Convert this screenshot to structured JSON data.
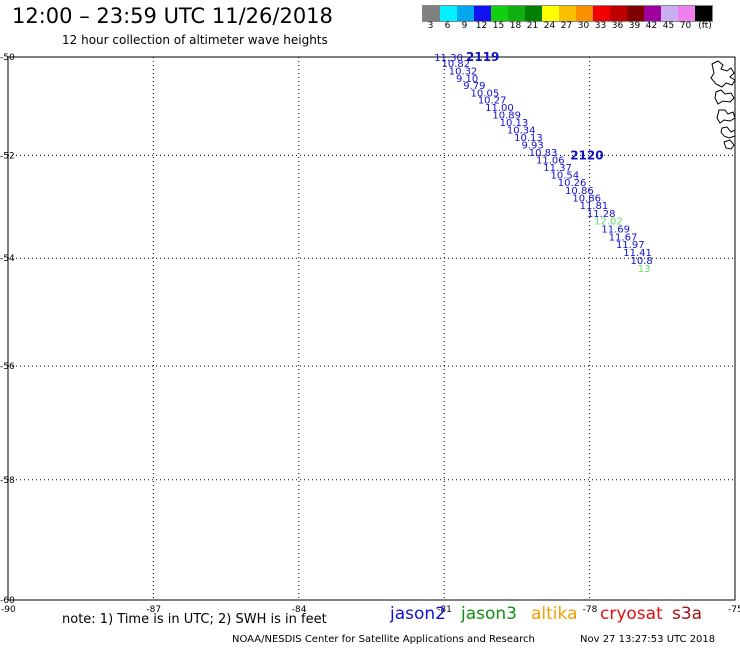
{
  "header": {
    "title": "12:00 – 23:59 UTC 11/26/2018",
    "subtitle": "12 hour collection of altimeter wave heights"
  },
  "scale": {
    "unit": "(ft)",
    "items": [
      {
        "label": "3",
        "color": "#808080"
      },
      {
        "label": "6",
        "color": "#00f0ff"
      },
      {
        "label": "9",
        "color": "#00a8f0"
      },
      {
        "label": "12",
        "color": "#1010f0"
      },
      {
        "label": "15",
        "color": "#10d010"
      },
      {
        "label": "18",
        "color": "#10b010"
      },
      {
        "label": "21",
        "color": "#008000"
      },
      {
        "label": "24",
        "color": "#ffff00"
      },
      {
        "label": "27",
        "color": "#f8c000"
      },
      {
        "label": "30",
        "color": "#f89000"
      },
      {
        "label": "33",
        "color": "#f00000"
      },
      {
        "label": "36",
        "color": "#c00000"
      },
      {
        "label": "39",
        "color": "#800000"
      },
      {
        "label": "42",
        "color": "#a000a0"
      },
      {
        "label": "45",
        "color": "#c8b0f0"
      },
      {
        "label": "70",
        "color": "#f080f0"
      },
      {
        "label": "(ft)",
        "color": "#000000"
      }
    ]
  },
  "map": {
    "lat_labels": [
      "-50",
      "-52",
      "-54",
      "-56",
      "-58",
      "-60"
    ],
    "lat_values": [
      -50,
      -52,
      -54,
      -56,
      -58,
      -60
    ],
    "lon_labels": [
      "-90",
      "-87",
      "-84",
      "-81",
      "-78",
      "-75"
    ],
    "lon_values": [
      -90,
      -87,
      -84,
      -81,
      -78,
      -75
    ],
    "pass_labels": [
      {
        "text": "2119",
        "color": "#1010c0"
      },
      {
        "text": "2120",
        "color": "#1010c0"
      }
    ],
    "track_color": "#1010d0",
    "highlight_color": "#60e060",
    "observations": [
      {
        "lat": -50.02,
        "lon": -81.0,
        "value": "11.30",
        "sat": "jason2"
      },
      {
        "lat": -50.15,
        "lon": -80.85,
        "value": "10.82",
        "sat": "jason2"
      },
      {
        "lat": -50.3,
        "lon": -80.7,
        "value": "10.32",
        "sat": "jason2"
      },
      {
        "lat": -50.45,
        "lon": -80.55,
        "value": "9.10",
        "sat": "jason2"
      },
      {
        "lat": -50.6,
        "lon": -80.4,
        "value": "9.79",
        "sat": "jason2"
      },
      {
        "lat": -50.75,
        "lon": -80.25,
        "value": "10.05",
        "sat": "jason2"
      },
      {
        "lat": -50.9,
        "lon": -80.1,
        "value": "10.27",
        "sat": "jason2"
      },
      {
        "lat": -51.05,
        "lon": -79.95,
        "value": "11.00",
        "sat": "jason2"
      },
      {
        "lat": -51.2,
        "lon": -79.8,
        "value": "10.89",
        "sat": "jason2"
      },
      {
        "lat": -51.35,
        "lon": -79.65,
        "value": "10.13",
        "sat": "jason2"
      },
      {
        "lat": -51.5,
        "lon": -79.5,
        "value": "10.34",
        "sat": "jason2"
      },
      {
        "lat": -51.65,
        "lon": -79.35,
        "value": "10.13",
        "sat": "jason2"
      },
      {
        "lat": -51.8,
        "lon": -79.2,
        "value": "9.93",
        "sat": "jason2"
      },
      {
        "lat": -51.95,
        "lon": -79.05,
        "value": "10.83",
        "sat": "jason2"
      },
      {
        "lat": -52.1,
        "lon": -78.9,
        "value": "11.06",
        "sat": "jason2"
      },
      {
        "lat": -52.25,
        "lon": -78.75,
        "value": "11.37",
        "sat": "jason2"
      },
      {
        "lat": -52.4,
        "lon": -78.6,
        "value": "10.54",
        "sat": "jason2"
      },
      {
        "lat": -52.55,
        "lon": -78.45,
        "value": "10.26",
        "sat": "jason2"
      },
      {
        "lat": -52.7,
        "lon": -78.3,
        "value": "10.86",
        "sat": "jason2"
      },
      {
        "lat": -52.85,
        "lon": -78.15,
        "value": "10.86",
        "sat": "jason2"
      },
      {
        "lat": -53.0,
        "lon": -78.0,
        "value": "11.81",
        "sat": "jason2"
      },
      {
        "lat": -53.15,
        "lon": -77.85,
        "value": "11.28",
        "sat": "jason2"
      },
      {
        "lat": -53.3,
        "lon": -77.7,
        "value": "12.02",
        "sat": "jason2",
        "highlight": true
      },
      {
        "lat": -53.45,
        "lon": -77.55,
        "value": "11.69",
        "sat": "jason2"
      },
      {
        "lat": -53.6,
        "lon": -77.4,
        "value": "11.67",
        "sat": "jason2"
      },
      {
        "lat": -53.75,
        "lon": -77.25,
        "value": "11.97",
        "sat": "jason2"
      },
      {
        "lat": -53.9,
        "lon": -77.1,
        "value": "11.41",
        "sat": "jason2"
      },
      {
        "lat": -54.05,
        "lon": -76.95,
        "value": "10.8",
        "sat": "jason2"
      },
      {
        "lat": -54.2,
        "lon": -76.8,
        "value": "13",
        "sat": "jason2",
        "highlight": true
      }
    ]
  },
  "footer": {
    "note": "note: 1) Time is in UTC; 2) SWH is in feet",
    "satellites": [
      {
        "name": "jason2",
        "color": "#1010d0"
      },
      {
        "name": "jason3",
        "color": "#109010"
      },
      {
        "name": "altika",
        "color": "#f0a000"
      },
      {
        "name": "cryosat",
        "color": "#e01010"
      },
      {
        "name": "s3a",
        "color": "#a01010"
      }
    ],
    "credit": "NOAA/NESDIS Center for Satellite Applications and Research",
    "timestamp": "Nov 27 13:27:53 UTC 2018"
  }
}
